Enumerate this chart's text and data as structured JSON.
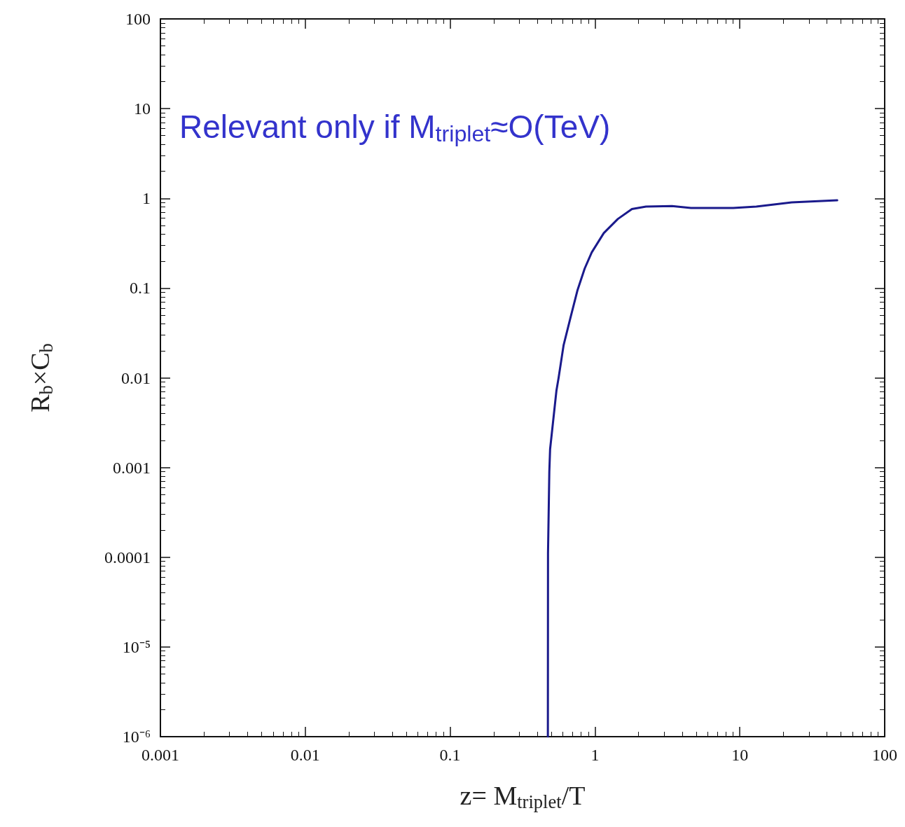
{
  "chart_data": {
    "type": "line",
    "xlabel": "z= M$_{triplet}$/T",
    "ylabel": "R$_{b}$×C$_{b}$",
    "annotations": [
      "Relevant only if M$_{triplet}$≈O(TeV)"
    ],
    "log": "xy",
    "grid": false,
    "marker": "none",
    "line_style": "solid",
    "xlim": [
      0.001,
      100
    ],
    "xticks": [
      0.001,
      0.01,
      0.1,
      1,
      10,
      100
    ],
    "ylim": [
      1e-06,
      100
    ],
    "yticks": [
      100,
      10,
      1,
      0.1,
      0.01,
      0.001,
      0.0001,
      {
        "value": 1e-05,
        "label": "10⁻⁵"
      },
      {
        "value": 1e-06,
        "label": "10⁻⁶"
      }
    ],
    "series": [
      {
        "color": "#1a1a8c",
        "x": [
          0.473,
          0.474,
          0.484,
          0.49,
          0.542,
          0.561,
          0.607,
          0.678,
          0.758,
          0.849,
          0.95,
          1.15,
          1.44,
          1.8,
          2.25,
          3.4,
          4.6,
          9,
          13,
          22.8,
          47
        ],
        "values": [
          1e-06,
          0.00011,
          0.0009,
          0.0016,
          0.0072,
          0.01,
          0.023,
          0.047,
          0.095,
          0.165,
          0.25,
          0.41,
          0.59,
          0.76,
          0.81,
          0.82,
          0.78,
          0.78,
          0.81,
          0.9,
          0.95
        ]
      }
    ]
  }
}
